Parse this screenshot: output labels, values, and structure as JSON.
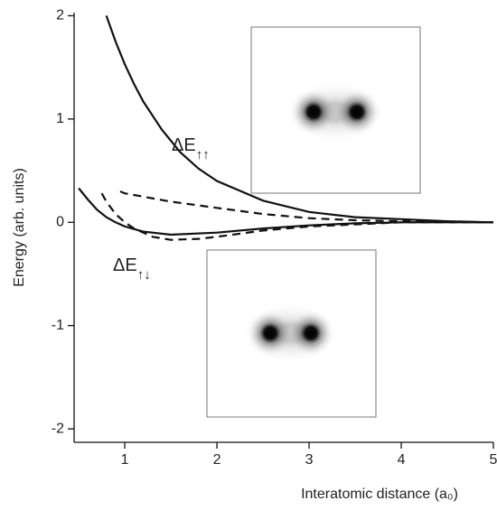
{
  "chart_data": {
    "type": "line",
    "xlabel": "Interatomic distance (a₀)",
    "ylabel": "Energy (arb. units)",
    "xlim": [
      0.45,
      5
    ],
    "ylim": [
      -2.13,
      2.03
    ],
    "xticks": [
      1,
      2,
      3,
      4,
      5
    ],
    "yticks": [
      2,
      1,
      0,
      -1,
      -2
    ],
    "annotations": [
      {
        "text": "ΔE",
        "sub": "↑↑"
      },
      {
        "text": "ΔE",
        "sub": "↑↓"
      }
    ],
    "series": [
      {
        "color": "#111",
        "style": "solid",
        "x": [
          0.8,
          0.9,
          1.0,
          1.1,
          1.2,
          1.4,
          1.6,
          1.8,
          2.0,
          2.5,
          3.0,
          3.5,
          4.0,
          4.5,
          5.0
        ],
        "values": [
          2.0,
          1.75,
          1.53,
          1.34,
          1.17,
          0.9,
          0.68,
          0.52,
          0.4,
          0.21,
          0.1,
          0.05,
          0.03,
          0.01,
          0.0
        ]
      },
      {
        "color": "#111",
        "style": "dashed",
        "x": [
          0.95,
          1.0,
          1.5,
          2.0,
          2.5,
          3.0,
          3.5,
          4.0,
          5.0
        ],
        "values": [
          0.3,
          0.28,
          0.2,
          0.14,
          0.08,
          0.04,
          0.02,
          0.01,
          0.0
        ]
      },
      {
        "color": "#111",
        "style": "solid",
        "x": [
          0.5,
          0.6,
          0.7,
          0.8,
          0.9,
          1.0,
          1.2,
          1.5,
          2.0,
          2.5,
          3.0,
          3.5,
          4.0,
          5.0
        ],
        "values": [
          0.33,
          0.22,
          0.12,
          0.05,
          0.0,
          -0.04,
          -0.09,
          -0.12,
          -0.1,
          -0.06,
          -0.03,
          -0.01,
          0.0,
          0.0
        ]
      },
      {
        "color": "#111",
        "style": "dashed",
        "x": [
          0.75,
          0.8,
          0.9,
          1.0,
          1.1,
          1.3,
          1.5,
          1.8,
          2.0,
          2.5,
          3.0,
          3.5,
          4.0,
          5.0
        ],
        "values": [
          0.28,
          0.2,
          0.08,
          0.0,
          -0.06,
          -0.14,
          -0.17,
          -0.16,
          -0.14,
          -0.08,
          -0.04,
          -0.02,
          0.0,
          0.0
        ]
      }
    ]
  }
}
